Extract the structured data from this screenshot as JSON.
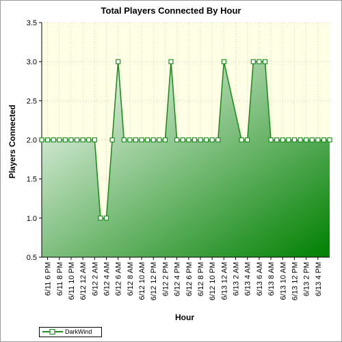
{
  "chart_data": {
    "type": "area",
    "title": "Total Players Connected By Hour",
    "xlabel": "Hour",
    "ylabel": "Players Connected",
    "ylim": [
      0.5,
      3.5
    ],
    "yticks": [
      "0.5",
      "1.0",
      "1.5",
      "2.0",
      "2.5",
      "3.0",
      "3.5"
    ],
    "grid": true,
    "legend_position": "bottom-left",
    "background_color": "#ffffe6",
    "line_color": "#1e8c1e",
    "fill_color": "#008000",
    "x_tick_labels": [
      "6/11 6 PM",
      "6/11 8 PM",
      "6/11 10 PM",
      "6/12 12 AM",
      "6/12 2 AM",
      "6/12 4 AM",
      "6/12 6 AM",
      "6/12 8 AM",
      "6/12 10 AM",
      "6/12 12 PM",
      "6/12 2 PM",
      "6/12 4 PM",
      "6/12 6 PM",
      "6/12 8 PM",
      "6/12 10 PM",
      "6/13 12 AM",
      "6/13 2 AM",
      "6/13 4 AM",
      "6/13 6 AM",
      "6/13 8 AM",
      "6/13 10 AM",
      "6/13 12 PM",
      "6/13 2 PM",
      "6/13 4 PM"
    ],
    "series": [
      {
        "name": "DarkWind",
        "points": [
          [
            "6/11 5 PM",
            2
          ],
          [
            "6/11 6 PM",
            2
          ],
          [
            "6/11 7 PM",
            2
          ],
          [
            "6/11 8 PM",
            2
          ],
          [
            "6/11 9 PM",
            2
          ],
          [
            "6/11 10 PM",
            2
          ],
          [
            "6/11 11 PM",
            2
          ],
          [
            "6/12 12 AM",
            2
          ],
          [
            "6/12 1 AM",
            2
          ],
          [
            "6/12 2 AM",
            2
          ],
          [
            "6/12 3 AM",
            1
          ],
          [
            "6/12 4 AM",
            1
          ],
          [
            "6/12 5 AM",
            2
          ],
          [
            "6/12 6 AM",
            3
          ],
          [
            "6/12 7 AM",
            2
          ],
          [
            "6/12 8 AM",
            2
          ],
          [
            "6/12 9 AM",
            2
          ],
          [
            "6/12 10 AM",
            2
          ],
          [
            "6/12 11 AM",
            2
          ],
          [
            "6/12 12 PM",
            2
          ],
          [
            "6/12 1 PM",
            2
          ],
          [
            "6/12 2 PM",
            2
          ],
          [
            "6/12 3 PM",
            3
          ],
          [
            "6/12 4 PM",
            2
          ],
          [
            "6/12 5 PM",
            2
          ],
          [
            "6/12 6 PM",
            2
          ],
          [
            "6/12 7 PM",
            2
          ],
          [
            "6/12 8 PM",
            2
          ],
          [
            "6/12 9 PM",
            2
          ],
          [
            "6/12 10 PM",
            2
          ],
          [
            "6/12 11 PM",
            2
          ],
          [
            "6/13 12 AM",
            3
          ],
          [
            "6/13 3 AM",
            2
          ],
          [
            "6/13 4 AM",
            2
          ],
          [
            "6/13 5 AM",
            3
          ],
          [
            "6/13 6 AM",
            3
          ],
          [
            "6/13 7 AM",
            3
          ],
          [
            "6/13 8 AM",
            2
          ],
          [
            "6/13 9 AM",
            2
          ],
          [
            "6/13 10 AM",
            2
          ],
          [
            "6/13 11 AM",
            2
          ],
          [
            "6/13 12 PM",
            2
          ],
          [
            "6/13 1 PM",
            2
          ],
          [
            "6/13 2 PM",
            2
          ],
          [
            "6/13 3 PM",
            2
          ],
          [
            "6/13 4 PM",
            2
          ],
          [
            "6/13 5 PM",
            2
          ],
          [
            "6/13 6 PM",
            2
          ]
        ]
      }
    ]
  }
}
